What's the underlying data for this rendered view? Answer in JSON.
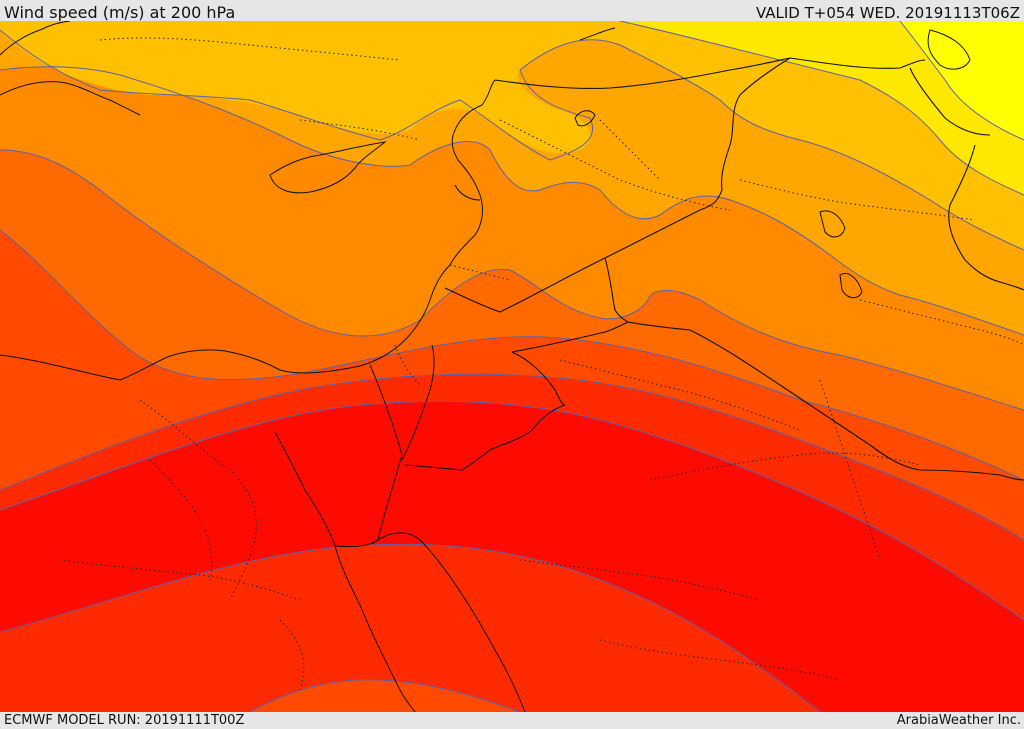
{
  "header": {
    "title": "Wind speed (m/s) at 200 hPa",
    "valid": "VALID T+054 WED. 20191113T06Z"
  },
  "footer": {
    "model_run": "ECMWF MODEL RUN: 20191111T00Z",
    "credit": "ArabiaWeather Inc."
  },
  "map_colors": {
    "yellow": "#ffff00",
    "light_yellow": "#ffe800",
    "amber": "#ffc000",
    "light_orange": "#ffa600",
    "orange": "#ff8a00",
    "dark_orange": "#ff6a00",
    "red_orange": "#ff4a00",
    "red": "#ff2a00",
    "deep_red": "#ff0a00",
    "contour": "#6060a8",
    "border": "#111111"
  }
}
